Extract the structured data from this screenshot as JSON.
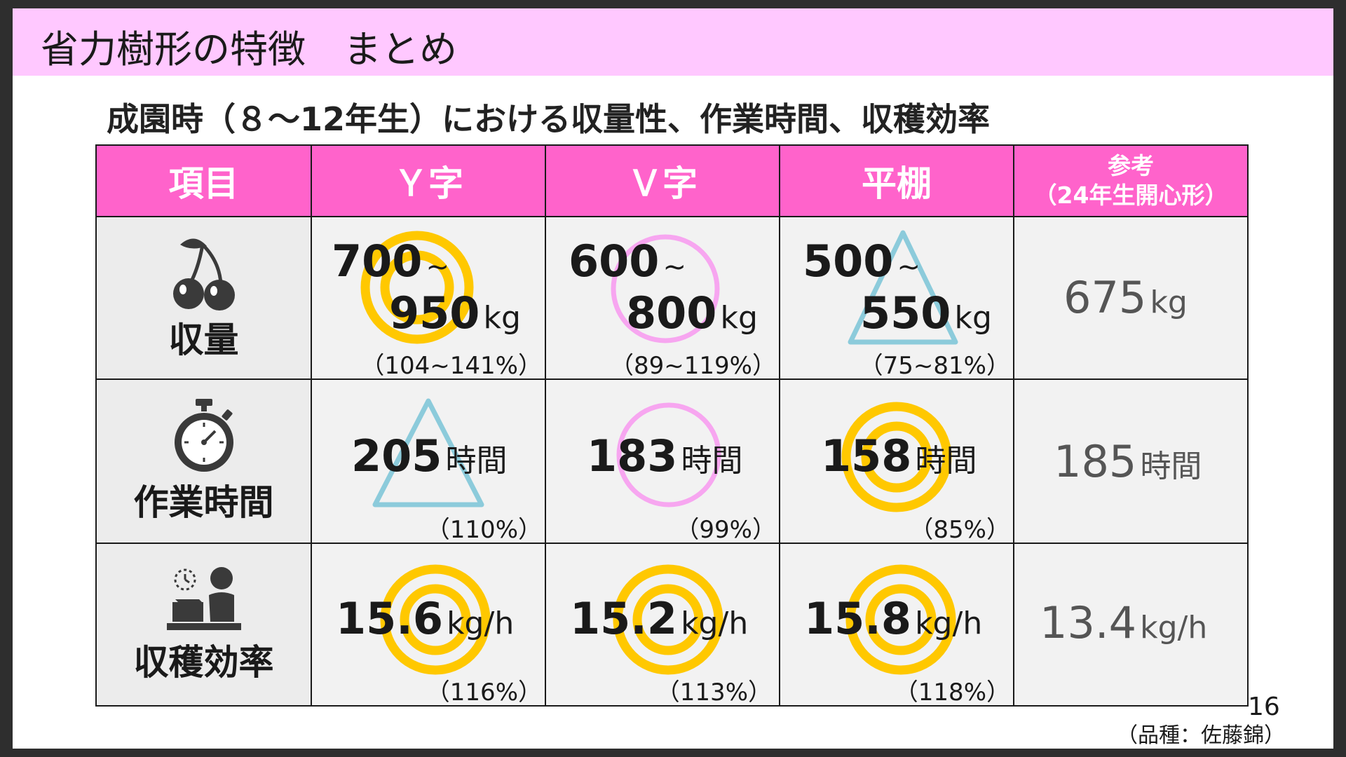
{
  "slide": {
    "title": "省力樹形の特徴　まとめ",
    "subtitle": "成園時（８～12年生）における収量性、作業時間、収穫効率",
    "page_number": "16",
    "variety_note": "（品種：佐藤錦）"
  },
  "table": {
    "headers": {
      "item": "項目",
      "y": "Ｙ字",
      "v": "Ｖ字",
      "flat": "平棚",
      "ref_line1": "参考",
      "ref_line2": "（24年生開心形）"
    },
    "rows": {
      "yield": {
        "label": "収量",
        "icon": "cherry-icon",
        "y": {
          "from": "700",
          "to": "950",
          "tilde": "~",
          "unit": "kg",
          "pct": "（104~141%）",
          "mark": "double-circle"
        },
        "v": {
          "from": "600",
          "to": "800",
          "tilde": "~",
          "unit": "kg",
          "pct": "（89~119%）",
          "mark": "circle"
        },
        "flat": {
          "from": "500",
          "to": "550",
          "tilde": "~",
          "unit": "kg",
          "pct": "（75~81%）",
          "mark": "triangle"
        },
        "ref": {
          "value": "675",
          "unit": "kg"
        }
      },
      "work_time": {
        "label": "作業時間",
        "icon": "stopwatch-icon",
        "y": {
          "value": "205",
          "unit": "時間",
          "pct": "（110%）",
          "mark": "triangle"
        },
        "v": {
          "value": "183",
          "unit": "時間",
          "pct": "（99%）",
          "mark": "circle"
        },
        "flat": {
          "value": "158",
          "unit": "時間",
          "pct": "（85%）",
          "mark": "double-circle"
        },
        "ref": {
          "value": "185",
          "unit": "時間"
        }
      },
      "efficiency": {
        "label": "収穫効率",
        "icon": "worker-at-desk-icon",
        "y": {
          "value": "15.6",
          "unit": "kg/h",
          "pct": "（116%）",
          "mark": "double-circle"
        },
        "v": {
          "value": "15.2",
          "unit": "kg/h",
          "pct": "（113%）",
          "mark": "double-circle"
        },
        "flat": {
          "value": "15.8",
          "unit": "kg/h",
          "pct": "（118%）",
          "mark": "double-circle"
        },
        "ref": {
          "value": "13.4",
          "unit": "kg/h"
        }
      }
    }
  },
  "colors": {
    "title_bar": "#ffc8ff",
    "header": "#ff63cb",
    "double_circle": "#ffc800",
    "circle": "#f7a6f0",
    "triangle": "#8ccbdb",
    "cell_bg": "#f2f2f2",
    "reference_text": "#555555"
  }
}
